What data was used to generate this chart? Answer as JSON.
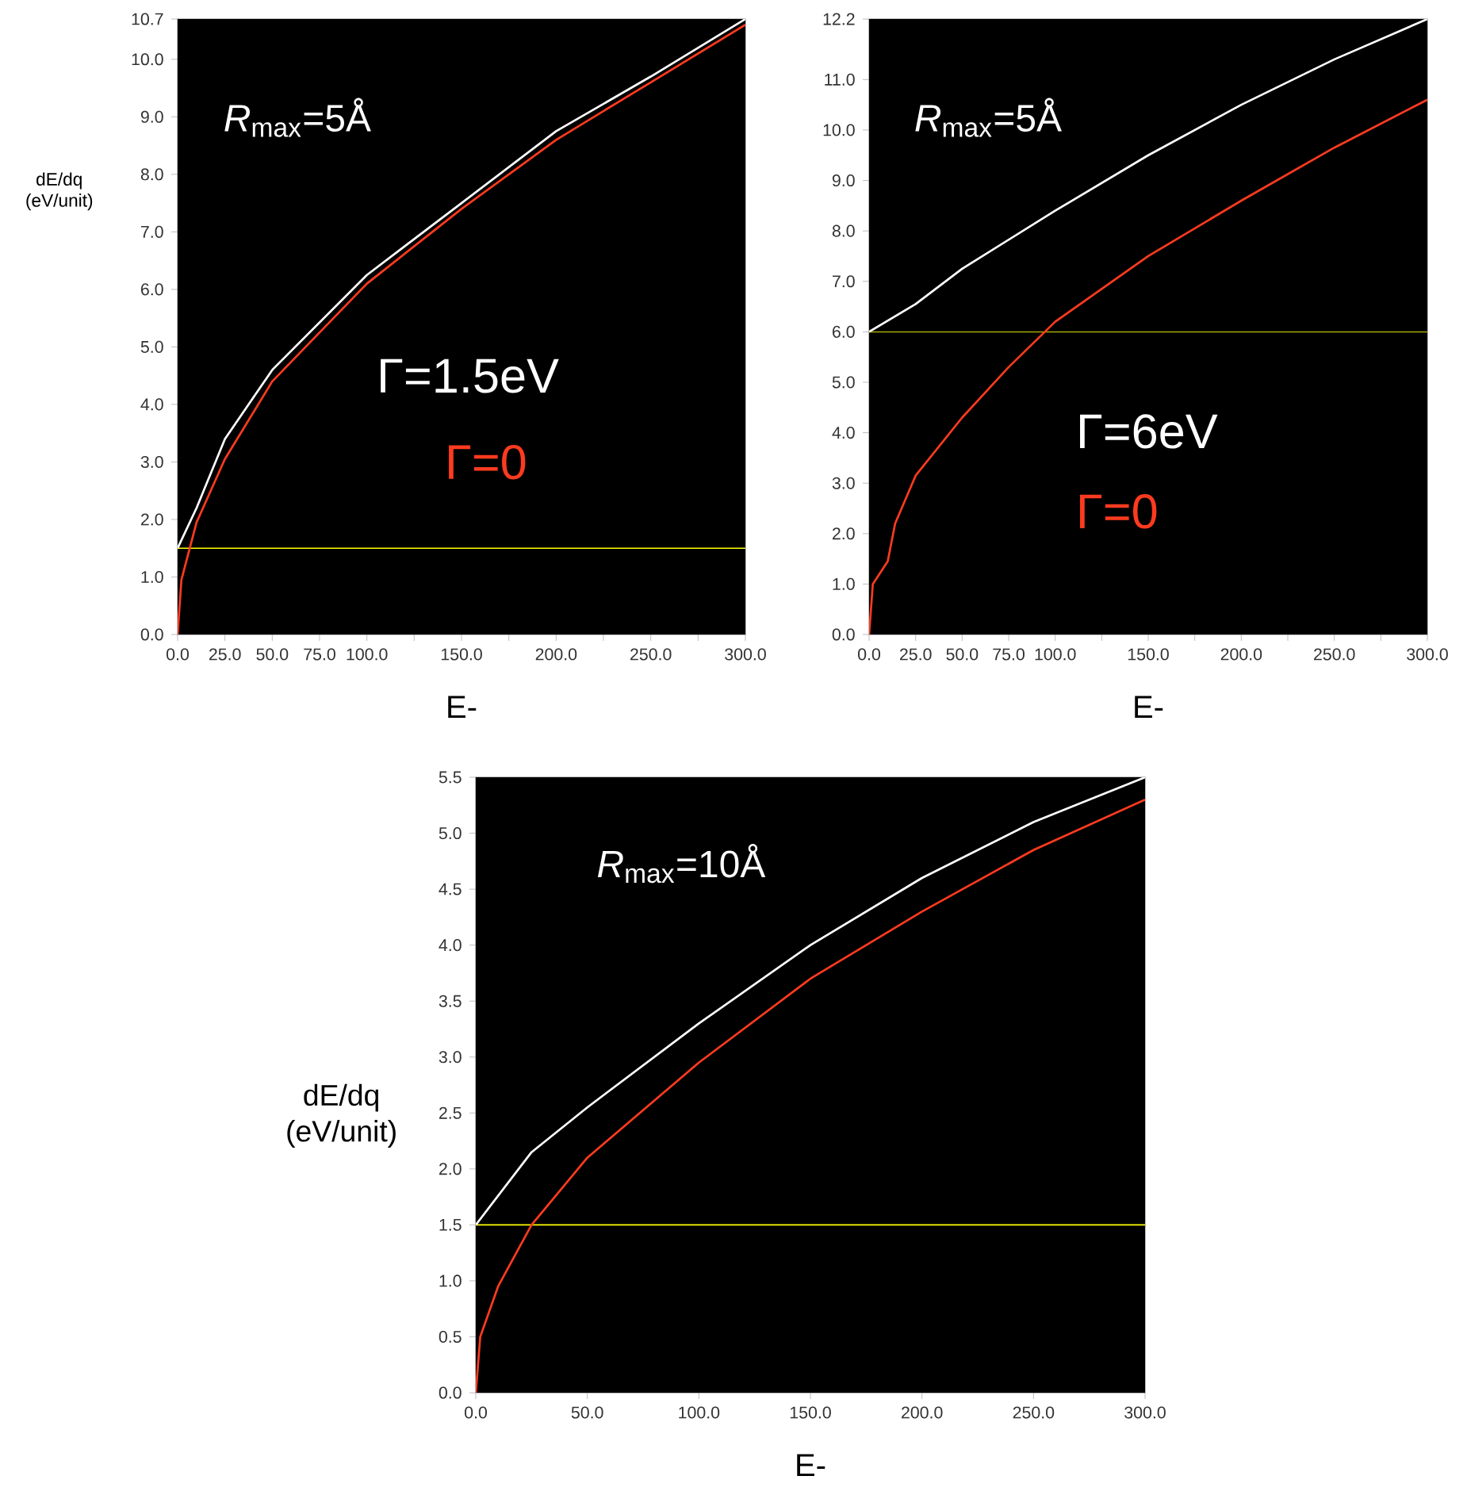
{
  "chart_data": [
    {
      "type": "line",
      "ylabel": "dE/dq (eV/unit)",
      "xlabel": "E-",
      "annotations": [
        "*R*$_{max}$=5Å"
      ],
      "xlim": [
        0,
        300
      ],
      "ylim": [
        0,
        10.7
      ],
      "xticks": [
        {
          "value": 0,
          "label": "0.0"
        },
        {
          "value": 25,
          "label": "25.0"
        },
        {
          "value": 50,
          "label": "50.0"
        },
        {
          "value": 75,
          "label": "75.0"
        },
        {
          "value": 100,
          "label": "100.0"
        },
        {
          "value": 125,
          "label": null
        },
        {
          "value": 150,
          "label": "150.0"
        },
        {
          "value": 175,
          "label": null
        },
        {
          "value": 200,
          "label": "200.0"
        },
        {
          "value": 225,
          "label": null
        },
        {
          "value": 250,
          "label": "250.0"
        },
        {
          "value": 275,
          "label": null
        },
        {
          "value": 300,
          "label": "300.0"
        }
      ],
      "yticks": [
        {
          "value": 0,
          "label": "0.0"
        },
        {
          "value": 1,
          "label": "1.0"
        },
        {
          "value": 2,
          "label": "2.0"
        },
        {
          "value": 3,
          "label": "3.0"
        },
        {
          "value": 4,
          "label": "4.0"
        },
        {
          "value": 5,
          "label": "5.0"
        },
        {
          "value": 6,
          "label": "6.0"
        },
        {
          "value": 7,
          "label": "7.0"
        },
        {
          "value": 8,
          "label": "8.0"
        },
        {
          "value": 9,
          "label": "9.0"
        },
        {
          "value": 10,
          "label": "10.0"
        },
        {
          "value": 10.7,
          "label": "10.7"
        }
      ],
      "ref_lines": [
        {
          "axis": "y",
          "value": 1.5,
          "color": "#ffff00"
        }
      ],
      "series": [
        {
          "name": "Γ=1.5eV",
          "color": "#ffffff",
          "x": [
            0,
            10,
            25,
            50,
            100,
            150,
            200,
            250,
            300
          ],
          "values": [
            1.5,
            2.2,
            3.4,
            4.6,
            6.25,
            7.5,
            8.75,
            9.7,
            10.7
          ]
        },
        {
          "name": "Γ=0",
          "color": "#ff3b1f",
          "x": [
            0,
            2,
            10,
            25,
            50,
            100,
            150,
            200,
            250,
            300
          ],
          "values": [
            0,
            0.95,
            1.95,
            3.05,
            4.4,
            6.1,
            7.4,
            8.6,
            9.6,
            10.6
          ]
        }
      ]
    },
    {
      "type": "line",
      "xlabel": "E-",
      "annotations": [
        "*R*$_{max}$=5Å"
      ],
      "xlim": [
        0,
        300
      ],
      "ylim": [
        0,
        12.2
      ],
      "xticks": [
        {
          "value": 0,
          "label": "0.0"
        },
        {
          "value": 25,
          "label": "25.0"
        },
        {
          "value": 50,
          "label": "50.0"
        },
        {
          "value": 75,
          "label": "75.0"
        },
        {
          "value": 100,
          "label": "100.0"
        },
        {
          "value": 125,
          "label": null
        },
        {
          "value": 150,
          "label": "150.0"
        },
        {
          "value": 175,
          "label": null
        },
        {
          "value": 200,
          "label": "200.0"
        },
        {
          "value": 225,
          "label": null
        },
        {
          "value": 250,
          "label": "250.0"
        },
        {
          "value": 275,
          "label": null
        },
        {
          "value": 300,
          "label": "300.0"
        }
      ],
      "yticks": [
        {
          "value": 0,
          "label": "0.0"
        },
        {
          "value": 1,
          "label": "1.0"
        },
        {
          "value": 2,
          "label": "2.0"
        },
        {
          "value": 3,
          "label": "3.0"
        },
        {
          "value": 4,
          "label": "4.0"
        },
        {
          "value": 5,
          "label": "5.0"
        },
        {
          "value": 6,
          "label": "6.0"
        },
        {
          "value": 7,
          "label": "7.0"
        },
        {
          "value": 8,
          "label": "8.0"
        },
        {
          "value": 9,
          "label": "9.0"
        },
        {
          "value": 10,
          "label": "10.0"
        },
        {
          "value": 11,
          "label": "11.0"
        },
        {
          "value": 12.2,
          "label": "12.2"
        }
      ],
      "ref_lines": [
        {
          "axis": "y",
          "value": 6,
          "color": "#a8a800"
        }
      ],
      "series": [
        {
          "name": "Γ=6eV",
          "color": "#ffffff",
          "x": [
            0,
            25,
            50,
            100,
            150,
            200,
            250,
            300
          ],
          "values": [
            6.0,
            6.55,
            7.25,
            8.4,
            9.5,
            10.5,
            11.4,
            12.2
          ]
        },
        {
          "name": "Γ=0",
          "color": "#ff3b1f",
          "x": [
            0,
            2,
            10,
            14,
            25,
            50,
            75,
            100,
            150,
            200,
            250,
            300
          ],
          "values": [
            0,
            1.0,
            1.45,
            2.2,
            3.15,
            4.3,
            5.3,
            6.2,
            7.5,
            8.6,
            9.65,
            10.6
          ]
        }
      ]
    },
    {
      "type": "line",
      "ylabel": "dE/dq (eV/unit)",
      "xlabel": "E-",
      "annotations": [
        "*R*$_{max}$=10Å"
      ],
      "xlim": [
        0,
        300
      ],
      "ylim": [
        0,
        5.5
      ],
      "xticks": [
        {
          "value": 0,
          "label": "0.0"
        },
        {
          "value": 50,
          "label": "50.0"
        },
        {
          "value": 100,
          "label": "100.0"
        },
        {
          "value": 150,
          "label": "150.0"
        },
        {
          "value": 200,
          "label": "200.0"
        },
        {
          "value": 250,
          "label": "250.0"
        },
        {
          "value": 300,
          "label": "300.0"
        }
      ],
      "yticks": [
        {
          "value": 0,
          "label": "0.0"
        },
        {
          "value": 0.5,
          "label": "0.5"
        },
        {
          "value": 1,
          "label": "1.0"
        },
        {
          "value": 1.5,
          "label": "1.5"
        },
        {
          "value": 2,
          "label": "2.0"
        },
        {
          "value": 2.5,
          "label": "2.5"
        },
        {
          "value": 3,
          "label": "3.0"
        },
        {
          "value": 3.5,
          "label": "3.5"
        },
        {
          "value": 4,
          "label": "4.0"
        },
        {
          "value": 4.5,
          "label": "4.5"
        },
        {
          "value": 5,
          "label": "5.0"
        },
        {
          "value": 5.5,
          "label": "5.5"
        }
      ],
      "ref_lines": [
        {
          "axis": "y",
          "value": 1.5,
          "color": "#ffff00"
        }
      ],
      "series": [
        {
          "color": "#ffffff",
          "x": [
            0,
            25,
            50,
            100,
            150,
            200,
            250,
            300
          ],
          "values": [
            1.5,
            2.15,
            2.55,
            3.3,
            4.0,
            4.6,
            5.1,
            5.5
          ]
        },
        {
          "color": "#ff3b1f",
          "x": [
            0,
            2,
            10,
            25,
            50,
            100,
            150,
            200,
            250,
            300
          ],
          "values": [
            0,
            0.5,
            0.95,
            1.5,
            2.1,
            2.95,
            3.7,
            4.3,
            4.85,
            5.3
          ]
        }
      ]
    }
  ]
}
